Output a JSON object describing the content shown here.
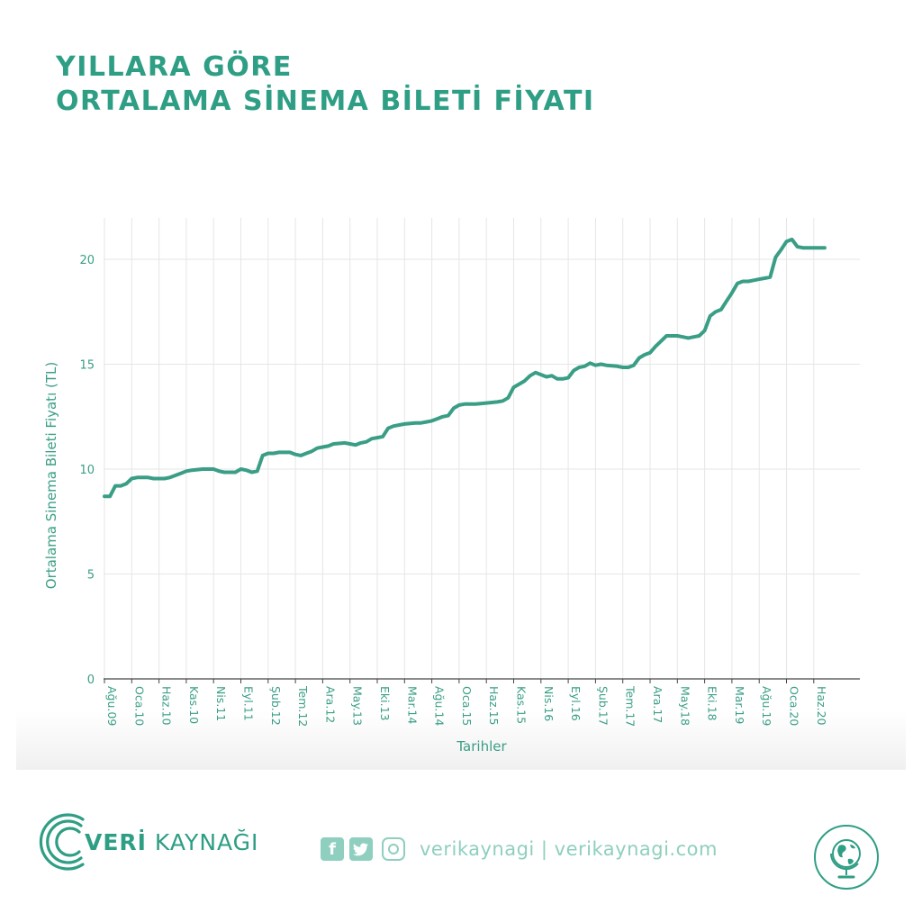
{
  "header": {
    "title_line1": "YILLARA GÖRE",
    "title_line2": "ORTALAMA SİNEMA BİLETİ FİYATI"
  },
  "chart_data": {
    "type": "line",
    "title": "YILLARA GÖRE ORTALAMA SİNEMA BİLETİ FİYATI",
    "xlabel": "Tarihler",
    "ylabel": "Ortalama Sinema Bileti Fiyatı (TL)",
    "ylim": [
      0,
      22
    ],
    "yticks": [
      0,
      5,
      10,
      15,
      20
    ],
    "grid": true,
    "color": "#3a9e86",
    "x_start": "Ağu.09",
    "x_end": "Tem.20",
    "xticks": [
      {
        "label": "Ağu.09",
        "month_index": 0
      },
      {
        "label": "Oca.10",
        "month_index": 5
      },
      {
        "label": "Haz.10",
        "month_index": 10
      },
      {
        "label": "Kas.10",
        "month_index": 15
      },
      {
        "label": "Nis.11",
        "month_index": 20
      },
      {
        "label": "Eyl.11",
        "month_index": 25
      },
      {
        "label": "Şub.12",
        "month_index": 30
      },
      {
        "label": "Tem.12",
        "month_index": 35
      },
      {
        "label": "Ara.12",
        "month_index": 40
      },
      {
        "label": "May.13",
        "month_index": 45
      },
      {
        "label": "Eki.13",
        "month_index": 50
      },
      {
        "label": "Mar.14",
        "month_index": 55
      },
      {
        "label": "Ağu.14",
        "month_index": 60
      },
      {
        "label": "Oca.15",
        "month_index": 65
      },
      {
        "label": "Haz.15",
        "month_index": 70
      },
      {
        "label": "Kas.15",
        "month_index": 75
      },
      {
        "label": "Nis.16",
        "month_index": 80
      },
      {
        "label": "Eyl.16",
        "month_index": 85
      },
      {
        "label": "Şub.17",
        "month_index": 90
      },
      {
        "label": "Tem.17",
        "month_index": 95
      },
      {
        "label": "Ara.17",
        "month_index": 100
      },
      {
        "label": "May.18",
        "month_index": 105
      },
      {
        "label": "Eki.18",
        "month_index": 110
      },
      {
        "label": "Mar.19",
        "month_index": 115
      },
      {
        "label": "Ağu.19",
        "month_index": 120
      },
      {
        "label": "Oca.20",
        "month_index": 125
      },
      {
        "label": "Haz.20",
        "month_index": 130
      }
    ],
    "series": [
      {
        "points": [
          [
            0,
            8.7
          ],
          [
            1,
            8.7
          ],
          [
            2,
            9.2
          ],
          [
            3,
            9.2
          ],
          [
            4,
            9.3
          ],
          [
            5,
            9.55
          ],
          [
            6,
            9.6
          ],
          [
            8,
            9.6
          ],
          [
            9,
            9.55
          ],
          [
            10,
            9.55
          ],
          [
            11,
            9.55
          ],
          [
            12,
            9.6
          ],
          [
            13,
            9.7
          ],
          [
            14,
            9.8
          ],
          [
            15,
            9.9
          ],
          [
            16,
            9.95
          ],
          [
            18,
            10.0
          ],
          [
            20,
            10.0
          ],
          [
            21,
            9.9
          ],
          [
            22,
            9.85
          ],
          [
            24,
            9.85
          ],
          [
            25,
            10.0
          ],
          [
            26,
            9.95
          ],
          [
            27,
            9.85
          ],
          [
            28,
            9.9
          ],
          [
            29,
            10.65
          ],
          [
            30,
            10.75
          ],
          [
            31,
            10.75
          ],
          [
            32,
            10.8
          ],
          [
            33,
            10.8
          ],
          [
            34,
            10.8
          ],
          [
            35,
            10.7
          ],
          [
            36,
            10.65
          ],
          [
            37,
            10.75
          ],
          [
            38,
            10.85
          ],
          [
            39,
            11.0
          ],
          [
            40,
            11.05
          ],
          [
            41,
            11.1
          ],
          [
            42,
            11.2
          ],
          [
            44,
            11.25
          ],
          [
            45,
            11.2
          ],
          [
            46,
            11.15
          ],
          [
            47,
            11.25
          ],
          [
            48,
            11.3
          ],
          [
            49,
            11.45
          ],
          [
            50,
            11.5
          ],
          [
            51,
            11.55
          ],
          [
            52,
            11.95
          ],
          [
            53,
            12.05
          ],
          [
            55,
            12.15
          ],
          [
            57,
            12.2
          ],
          [
            58,
            12.2
          ],
          [
            59,
            12.25
          ],
          [
            60,
            12.3
          ],
          [
            61,
            12.4
          ],
          [
            62,
            12.5
          ],
          [
            63,
            12.55
          ],
          [
            64,
            12.9
          ],
          [
            65,
            13.05
          ],
          [
            66,
            13.1
          ],
          [
            68,
            13.1
          ],
          [
            70,
            13.15
          ],
          [
            72,
            13.2
          ],
          [
            73,
            13.25
          ],
          [
            74,
            13.4
          ],
          [
            75,
            13.9
          ],
          [
            76,
            14.05
          ],
          [
            77,
            14.2
          ],
          [
            78,
            14.45
          ],
          [
            79,
            14.6
          ],
          [
            80,
            14.5
          ],
          [
            81,
            14.4
          ],
          [
            82,
            14.45
          ],
          [
            83,
            14.3
          ],
          [
            84,
            14.3
          ],
          [
            85,
            14.35
          ],
          [
            86,
            14.7
          ],
          [
            87,
            14.85
          ],
          [
            88,
            14.9
          ],
          [
            89,
            15.05
          ],
          [
            90,
            14.95
          ],
          [
            91,
            15.0
          ],
          [
            92,
            14.95
          ],
          [
            94,
            14.9
          ],
          [
            95,
            14.85
          ],
          [
            96,
            14.85
          ],
          [
            97,
            14.95
          ],
          [
            98,
            15.3
          ],
          [
            99,
            15.45
          ],
          [
            100,
            15.55
          ],
          [
            101,
            15.85
          ],
          [
            102,
            16.1
          ],
          [
            103,
            16.35
          ],
          [
            105,
            16.35
          ],
          [
            106,
            16.3
          ],
          [
            107,
            16.25
          ],
          [
            108,
            16.3
          ],
          [
            109,
            16.35
          ],
          [
            110,
            16.6
          ],
          [
            111,
            17.3
          ],
          [
            112,
            17.5
          ],
          [
            113,
            17.6
          ],
          [
            114,
            18.0
          ],
          [
            115,
            18.4
          ],
          [
            116,
            18.85
          ],
          [
            117,
            18.95
          ],
          [
            118,
            18.95
          ],
          [
            119,
            19.0
          ],
          [
            120,
            19.05
          ],
          [
            121,
            19.1
          ],
          [
            122,
            19.15
          ],
          [
            123,
            20.1
          ],
          [
            124,
            20.45
          ],
          [
            125,
            20.85
          ],
          [
            126,
            20.95
          ],
          [
            127,
            20.6
          ],
          [
            128,
            20.55
          ],
          [
            131,
            20.55
          ],
          [
            132,
            20.55
          ]
        ]
      }
    ]
  },
  "footer": {
    "brand_bold": "VERİ",
    "brand_rest": " KAYNAĞI",
    "social_text": "verikaynagi | verikaynagi.com",
    "icons": [
      "facebook-icon",
      "twitter-icon",
      "instagram-icon",
      "globe-icon",
      "logo-arc-icon"
    ]
  }
}
